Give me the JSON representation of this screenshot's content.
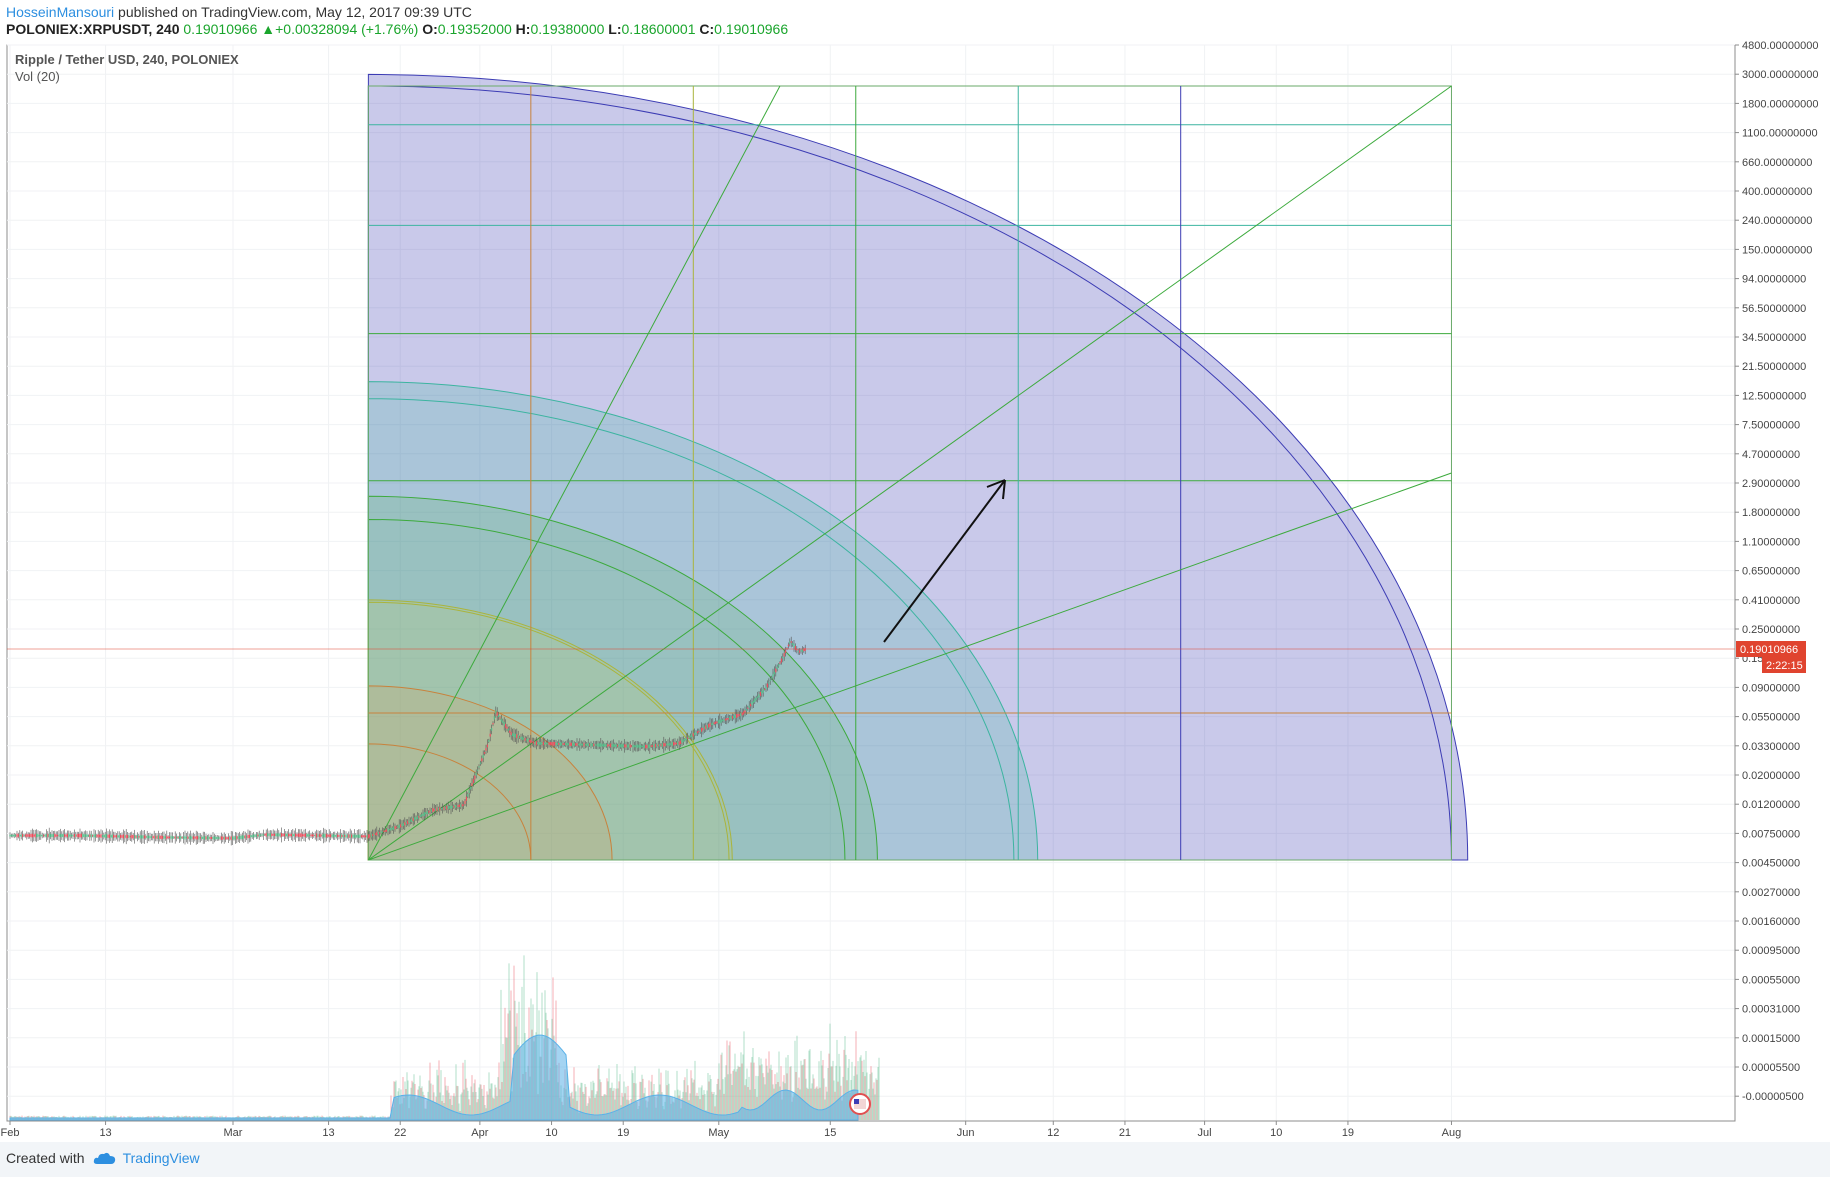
{
  "header": {
    "author": "HosseinMansouri",
    "published": " published on TradingView.com, May 12, 2017 09:39 UTC",
    "symbol": "POLONIEX:XRPUSDT, 240",
    "last": "0.19010966",
    "change": "+0.00328094 (+1.76%)",
    "open_label": "O:",
    "open": "0.19352000",
    "high_label": "H:",
    "high": "0.19380000",
    "low_label": "L:",
    "low": "0.18600001",
    "close_label": "C:",
    "close": "0.19010966"
  },
  "pane": {
    "title": "Ripple / Tether USD, 240, POLONIEX",
    "volume": "Vol (20)"
  },
  "footer": {
    "created_with": "Created with",
    "brand": "TradingView"
  },
  "colors": {
    "up": "#53b987",
    "down": "#eb4d5c",
    "volume_ma": "#5ab1e8",
    "price_label": "#e0442f",
    "gann_blue": "#3c3cb4",
    "gann_teal": "#3cb4a0",
    "gann_green": "#3caa3c",
    "gann_yellow": "#aab43c",
    "gann_orange": "#c8823c"
  },
  "chart_data": {
    "type": "candlestick",
    "y_scale": "log",
    "x_axis": {
      "tick_labels": [
        "Feb",
        "13",
        "Mar",
        "13",
        "22",
        "Apr",
        "10",
        "19",
        "May",
        "15",
        "Jun",
        "12",
        "21",
        "Jul",
        "10",
        "19",
        "Aug"
      ],
      "range": [
        "2017-02-01",
        "2017-08-14"
      ]
    },
    "y_axis": {
      "tick_labels": [
        "4800.00000000",
        "3000.00000000",
        "1800.00000000",
        "1100.00000000",
        "660.00000000",
        "400.00000000",
        "240.00000000",
        "150.00000000",
        "94.00000000",
        "56.50000000",
        "34.50000000",
        "21.50000000",
        "12.50000000",
        "7.50000000",
        "4.70000000",
        "2.90000000",
        "1.80000000",
        "1.10000000",
        "0.65000000",
        "0.41000000",
        "0.25000000",
        "0.15000000",
        "0.09000000",
        "0.05500000",
        "0.03300000",
        "0.02000000",
        "0.01200000",
        "0.00750000",
        "0.00450000",
        "0.00270000",
        "0.00160000",
        "0.00095000",
        "0.00055000",
        "0.00031000",
        "0.00015000",
        "0.00005500",
        "-0.00000500"
      ]
    },
    "last_price_label": "0.19010966",
    "countdown_label": "2:22:15",
    "price_path": [
      {
        "date": "2017-02-01",
        "close": 0.0063
      },
      {
        "date": "2017-02-10",
        "close": 0.0063
      },
      {
        "date": "2017-02-20",
        "close": 0.0061
      },
      {
        "date": "2017-03-01",
        "close": 0.006
      },
      {
        "date": "2017-03-05",
        "close": 0.0064
      },
      {
        "date": "2017-03-12",
        "close": 0.0063
      },
      {
        "date": "2017-03-18",
        "close": 0.0062
      },
      {
        "date": "2017-03-22",
        "close": 0.0075
      },
      {
        "date": "2017-03-26",
        "close": 0.01
      },
      {
        "date": "2017-03-30",
        "close": 0.011
      },
      {
        "date": "2017-04-01",
        "close": 0.023
      },
      {
        "date": "2017-04-02",
        "close": 0.033
      },
      {
        "date": "2017-04-03",
        "close": 0.06
      },
      {
        "date": "2017-04-05",
        "close": 0.04
      },
      {
        "date": "2017-04-08",
        "close": 0.034
      },
      {
        "date": "2017-04-15",
        "close": 0.033
      },
      {
        "date": "2017-04-22",
        "close": 0.032
      },
      {
        "date": "2017-04-26",
        "close": 0.034
      },
      {
        "date": "2017-04-30",
        "close": 0.048
      },
      {
        "date": "2017-05-04",
        "close": 0.058
      },
      {
        "date": "2017-05-07",
        "close": 0.095
      },
      {
        "date": "2017-05-09",
        "close": 0.16
      },
      {
        "date": "2017-05-10",
        "close": 0.22
      },
      {
        "date": "2017-05-11",
        "close": 0.18
      },
      {
        "date": "2017-05-12",
        "close": 0.1901
      }
    ],
    "gann_box": {
      "start_date": "2017-03-18",
      "end_date": "2017-08-01"
    }
  }
}
